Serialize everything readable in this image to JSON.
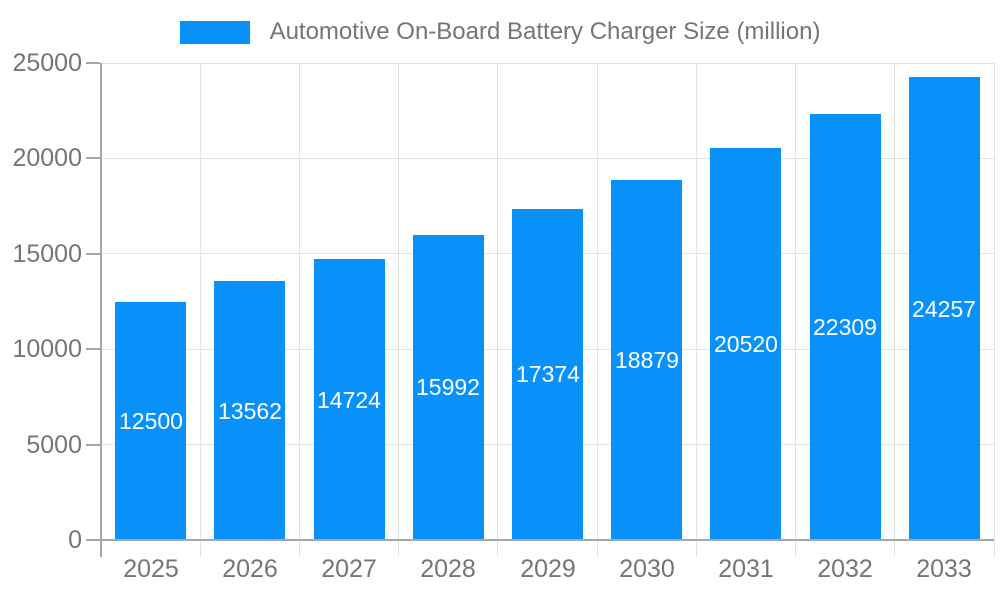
{
  "legend": {
    "label": "Automotive On-Board Battery Charger Size (million)"
  },
  "chart_data": {
    "type": "bar",
    "title": "",
    "legend_label": "Automotive On-Board Battery Charger Size (million)",
    "legend_position": "top-center",
    "categories": [
      "2025",
      "2026",
      "2027",
      "2028",
      "2029",
      "2030",
      "2031",
      "2032",
      "2033"
    ],
    "values": [
      12500,
      13562,
      14724,
      15992,
      17374,
      18879,
      20520,
      22309,
      24257
    ],
    "xlabel": "",
    "ylabel": "",
    "ylim": [
      0,
      25000
    ],
    "yticks": [
      0,
      5000,
      10000,
      15000,
      20000,
      25000
    ],
    "grid": true,
    "value_labels_position": "inside-center",
    "bar_color": "#0991fb",
    "value_label_color": "#ffffff"
  },
  "colors": {
    "bar": "#0991fb",
    "axis": "#a6a6a6",
    "grid": "#e3e3e3",
    "tick_text": "#757575",
    "legend_text": "#757575",
    "value_text": "#ffffff",
    "background": "#ffffff"
  }
}
